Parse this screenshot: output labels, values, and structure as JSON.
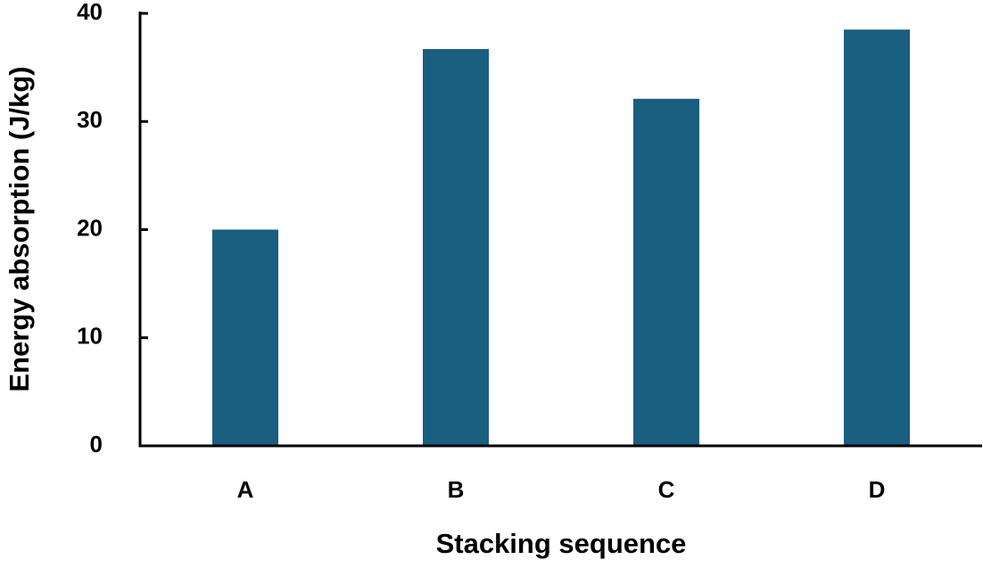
{
  "chart_data": {
    "type": "bar",
    "x_label": "Stacking sequence",
    "y_label": "Energy absorption (J/kg)",
    "categories": [
      "A",
      "B",
      "C",
      "D"
    ],
    "values": [
      20,
      36.7,
      32.1,
      38.5
    ],
    "color": "#1a5e80",
    "ylim": [
      0,
      40
    ],
    "yticks": [
      0,
      10,
      20,
      30,
      40
    ],
    "grid": false
  }
}
